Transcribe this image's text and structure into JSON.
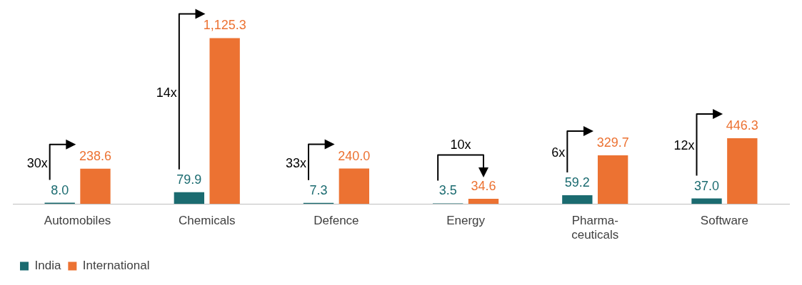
{
  "chart_data": {
    "type": "bar",
    "categories": [
      "Automobiles",
      "Chemicals",
      "Defence",
      "Energy",
      "Pharma-ceuticals",
      "Software"
    ],
    "series": [
      {
        "name": "India",
        "color": "#1b6b70",
        "values": [
          8.0,
          79.9,
          7.3,
          3.5,
          59.2,
          37.0
        ],
        "value_labels": [
          "8.0",
          "79.9",
          "7.3",
          "3.5",
          "59.2",
          "37.0"
        ]
      },
      {
        "name": "International",
        "color": "#ec7232",
        "values": [
          238.6,
          1125.3,
          240.0,
          34.6,
          329.7,
          446.3
        ],
        "value_labels": [
          "238.6",
          "1,125.3",
          "240.0",
          "34.6",
          "329.7",
          "446.3"
        ]
      }
    ],
    "annotations": [
      "30x",
      "14x",
      "33x",
      "10x",
      "6x",
      "12x"
    ],
    "legend": "bottom left",
    "grid": false
  }
}
